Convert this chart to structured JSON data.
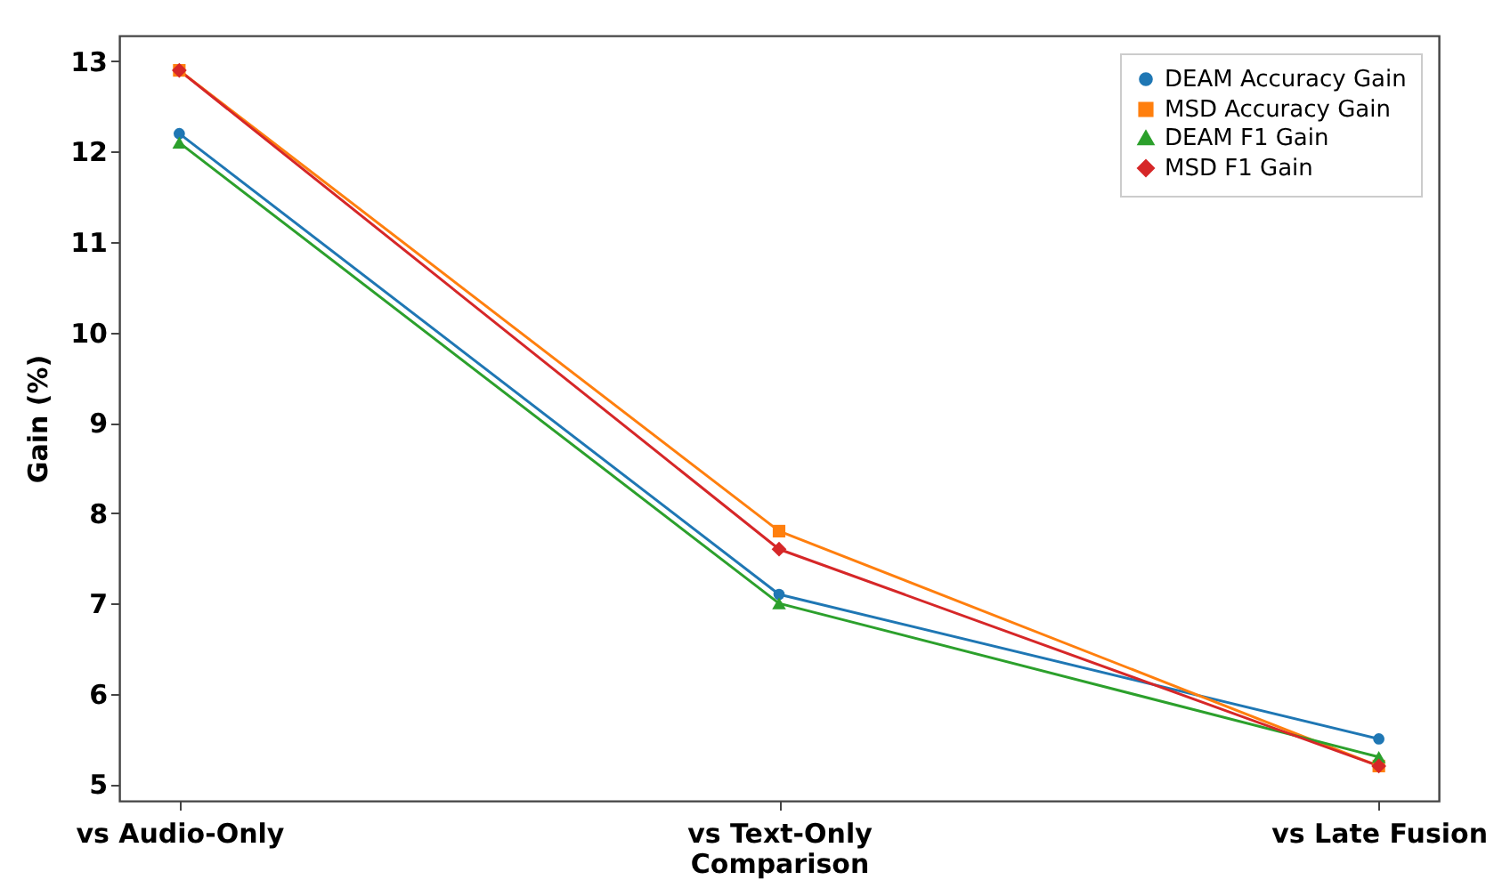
{
  "chart_data": {
    "type": "line",
    "xlabel": "Comparison",
    "ylabel": "Gain (%)",
    "categories": [
      "vs Audio-Only",
      "vs Text-Only",
      "vs Late Fusion"
    ],
    "series": [
      {
        "name": "DEAM Accuracy Gain",
        "color": "#1f77b4",
        "marker": "circle",
        "values": [
          12.2,
          7.1,
          5.5
        ]
      },
      {
        "name": "MSD Accuracy Gain",
        "color": "#ff7f0e",
        "marker": "square",
        "values": [
          12.9,
          7.8,
          5.2
        ]
      },
      {
        "name": "DEAM F1 Gain",
        "color": "#2ca02c",
        "marker": "triangle",
        "values": [
          12.1,
          7.0,
          5.3
        ]
      },
      {
        "name": "MSD F1 Gain",
        "color": "#d62728",
        "marker": "diamond",
        "values": [
          12.9,
          7.6,
          5.2
        ]
      }
    ],
    "ylim": [
      4.815,
      13.285
    ],
    "yticks": [
      5,
      6,
      7,
      8,
      9,
      10,
      11,
      12,
      13
    ],
    "grid": false,
    "legend": "top right"
  }
}
